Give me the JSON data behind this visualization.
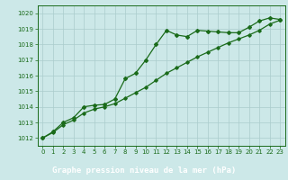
{
  "x": [
    0,
    1,
    2,
    3,
    4,
    5,
    6,
    7,
    8,
    9,
    10,
    11,
    12,
    13,
    14,
    15,
    16,
    17,
    18,
    19,
    20,
    21,
    22,
    23
  ],
  "y_main": [
    1012.0,
    1012.4,
    1013.0,
    1013.3,
    1014.0,
    1014.1,
    1014.15,
    1014.5,
    1015.8,
    1016.15,
    1017.0,
    1018.0,
    1018.9,
    1018.6,
    1018.5,
    1018.9,
    1018.85,
    1018.8,
    1018.75,
    1018.75,
    1019.1,
    1019.5,
    1019.7,
    1019.6
  ],
  "y_smooth": [
    1012.0,
    1012.35,
    1012.85,
    1013.15,
    1013.6,
    1013.85,
    1014.0,
    1014.2,
    1014.55,
    1014.9,
    1015.25,
    1015.7,
    1016.15,
    1016.5,
    1016.85,
    1017.2,
    1017.5,
    1017.8,
    1018.1,
    1018.35,
    1018.6,
    1018.9,
    1019.3,
    1019.55
  ],
  "background_color": "#cce8e8",
  "grid_color": "#aacccc",
  "line_color": "#1a6b1a",
  "label_bg_color": "#2d6b2d",
  "label_text_color": "#ffffff",
  "xlabel": "Graphe pression niveau de la mer (hPa)",
  "ylim": [
    1011.5,
    1020.5
  ],
  "xlim": [
    -0.5,
    23.5
  ],
  "yticks": [
    1012,
    1013,
    1014,
    1015,
    1016,
    1017,
    1018,
    1019,
    1020
  ],
  "xticks": [
    0,
    1,
    2,
    3,
    4,
    5,
    6,
    7,
    8,
    9,
    10,
    11,
    12,
    13,
    14,
    15,
    16,
    17,
    18,
    19,
    20,
    21,
    22,
    23
  ]
}
